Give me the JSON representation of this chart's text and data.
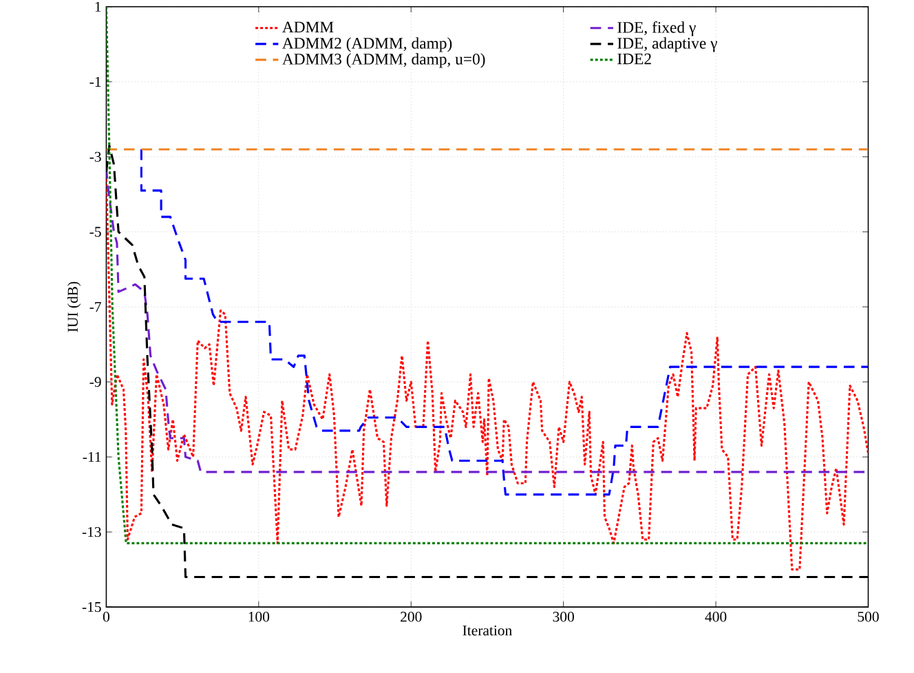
{
  "chart_data": {
    "type": "line",
    "xlabel": "Iteration",
    "ylabel": "IUI (dB)",
    "xlim": [
      0,
      500
    ],
    "ylim": [
      -15,
      1
    ],
    "xticks": [
      0,
      100,
      200,
      300,
      400,
      500
    ],
    "yticks": [
      -15,
      -13,
      -11,
      -9,
      -7,
      -5,
      -3,
      -1,
      1
    ],
    "grid": true,
    "legend": "top",
    "series": [
      {
        "name": "ADMM",
        "color": "#ff0000",
        "line_style": "dotted",
        "x": [
          0,
          3.8,
          7,
          11.3,
          12.8,
          14,
          18.6,
          23,
          24.5,
          27.4,
          30,
          33,
          37.7,
          40.7,
          43.7,
          46.6,
          51,
          57,
          60,
          64.6,
          67.6,
          70.5,
          75,
          78,
          81,
          85.5,
          88.5,
          91.5,
          96,
          99,
          103.5,
          108,
          112.4,
          115.4,
          119.8,
          124,
          128.9,
          131.8,
          136.3,
          142,
          146.5,
          149.5,
          152.5,
          157,
          161.5,
          167.4,
          169,
          173,
          178,
          182,
          184,
          187,
          191,
          194,
          197,
          200,
          203,
          208,
          211,
          214,
          216,
          219,
          220,
          223,
          226,
          229,
          234,
          236,
          239,
          241,
          244,
          247,
          248,
          250,
          251,
          254,
          257,
          260,
          261,
          264,
          266,
          270,
          275,
          276,
          280,
          285,
          286,
          291,
          294,
          297,
          300,
          304,
          307,
          310,
          312,
          314,
          317,
          318,
          321,
          326,
          327,
          330,
          333,
          340,
          343,
          345,
          346,
          349,
          352,
          356,
          359,
          362,
          365,
          369,
          372,
          375,
          378,
          381,
          384,
          386,
          387,
          390,
          394,
          398,
          401,
          402,
          404,
          408,
          411,
          414,
          417,
          421,
          426,
          430,
          435,
          438,
          441,
          445,
          450,
          455,
          461,
          467,
          470,
          473,
          476,
          479,
          484,
          488,
          493,
          497,
          500
        ],
        "values": [
          -3.6,
          -9.6,
          -8.8,
          -9.2,
          -10.3,
          -13.2,
          -12.6,
          -12.5,
          -8.4,
          -9.4,
          -11.4,
          -8.8,
          -9.6,
          -10.8,
          -10.0,
          -11.1,
          -10.4,
          -11.0,
          -7.9,
          -8.1,
          -8.0,
          -9.1,
          -7.1,
          -7.2,
          -9.3,
          -9.7,
          -10.3,
          -9.4,
          -11.2,
          -10.7,
          -9.8,
          -9.9,
          -13.3,
          -9.5,
          -10.8,
          -10.8,
          -9.9,
          -8.8,
          -9.6,
          -10.0,
          -8.8,
          -9.9,
          -12.6,
          -11.8,
          -10.8,
          -12.3,
          -10.3,
          -9.2,
          -10.5,
          -10.6,
          -12.3,
          -10.5,
          -9.5,
          -8.3,
          -9.5,
          -9.0,
          -10.2,
          -10.2,
          -7.9,
          -9.3,
          -11.4,
          -10.6,
          -9.3,
          -10.0,
          -10.5,
          -9.5,
          -9.8,
          -10.2,
          -8.8,
          -10.2,
          -9.3,
          -10.6,
          -10.0,
          -11.5,
          -8.9,
          -9.5,
          -10.8,
          -11.1,
          -10.0,
          -10.2,
          -11.2,
          -11.7,
          -11.7,
          -10.6,
          -9.0,
          -9.5,
          -10.3,
          -10.6,
          -11.8,
          -10.2,
          -10.6,
          -9.0,
          -9.3,
          -9.8,
          -9.4,
          -11.2,
          -9.8,
          -11.5,
          -12.0,
          -10.6,
          -12.6,
          -12.9,
          -13.3,
          -11.8,
          -11.7,
          -10.7,
          -11.3,
          -12.0,
          -13.2,
          -13.2,
          -10.6,
          -10.5,
          -11.1,
          -9.1,
          -8.8,
          -9.4,
          -8.5,
          -7.7,
          -8.2,
          -11.1,
          -9.7,
          -9.7,
          -9.7,
          -9.1,
          -7.8,
          -9.1,
          -10.8,
          -11.0,
          -13.2,
          -13.2,
          -11.8,
          -8.8,
          -8.6,
          -10.7,
          -8.8,
          -9.7,
          -8.7,
          -10.1,
          -14.0,
          -14.0,
          -9.0,
          -9.5,
          -10.5,
          -12.5,
          -11.8,
          -11.3,
          -12.8,
          -9.1,
          -9.5,
          -10.2,
          -10.9
        ]
      },
      {
        "name": "ADMM2 (ADMM, damp)",
        "color": "#0000ff",
        "line_style": "dashed",
        "x": [
          23,
          23,
          36,
          36,
          42,
          47,
          52,
          52,
          64,
          70,
          73,
          107,
          108,
          117,
          123,
          126,
          130,
          133,
          138,
          141,
          166,
          167,
          172,
          191,
          197,
          222,
          225,
          227,
          260,
          261,
          262,
          330,
          333,
          334,
          341,
          342,
          362,
          370,
          500
        ],
        "values": [
          -2.8,
          -3.9,
          -3.9,
          -4.6,
          -4.6,
          -5.2,
          -5.75,
          -6.25,
          -6.25,
          -7.2,
          -7.4,
          -7.4,
          -8.4,
          -8.4,
          -8.6,
          -8.3,
          -8.3,
          -9.5,
          -10.2,
          -10.3,
          -10.3,
          -10.2,
          -9.95,
          -9.95,
          -10.2,
          -10.2,
          -10.8,
          -11.1,
          -11.1,
          -11.6,
          -12.0,
          -12.0,
          -11.3,
          -10.7,
          -10.7,
          -10.2,
          -10.2,
          -8.6,
          -8.6
        ]
      },
      {
        "name": "ADMM3 (ADMM, damp, u=0)",
        "color": "#f08020",
        "line_style": "dashed",
        "x": [
          0,
          500
        ],
        "values": [
          -2.8,
          -2.8
        ]
      },
      {
        "name": "IDE, fixed γ",
        "color": "#7020d0",
        "line_style": "dashed",
        "x": [
          0,
          1,
          5,
          7,
          8,
          19,
          25,
          27,
          29,
          33,
          39,
          41,
          42,
          51,
          52,
          60,
          62,
          500
        ],
        "values": [
          -3.3,
          -3.8,
          -5.0,
          -5.3,
          -6.6,
          -6.4,
          -6.6,
          -7.2,
          -8.3,
          -8.7,
          -9.2,
          -10.2,
          -10.5,
          -10.5,
          -11.0,
          -11.1,
          -11.4,
          -11.4
        ]
      },
      {
        "name": "IDE, adaptive γ",
        "color": "#000000",
        "line_style": "dashed",
        "x": [
          0,
          2,
          5,
          8,
          17,
          21,
          25,
          27,
          30,
          31,
          36,
          43,
          51,
          52,
          500
        ],
        "values": [
          -3.4,
          -2.7,
          -3.2,
          -5.0,
          -5.35,
          -5.9,
          -6.2,
          -8.4,
          -10.8,
          -12.0,
          -12.3,
          -12.8,
          -12.9,
          -14.2,
          -14.2
        ]
      },
      {
        "name": "IDE2",
        "color": "#007f00",
        "line_style": "dotted",
        "x": [
          0,
          2,
          4,
          8,
          13,
          500
        ],
        "values": [
          1,
          -2.8,
          -7,
          -11,
          -13.3,
          -13.3
        ]
      }
    ]
  }
}
